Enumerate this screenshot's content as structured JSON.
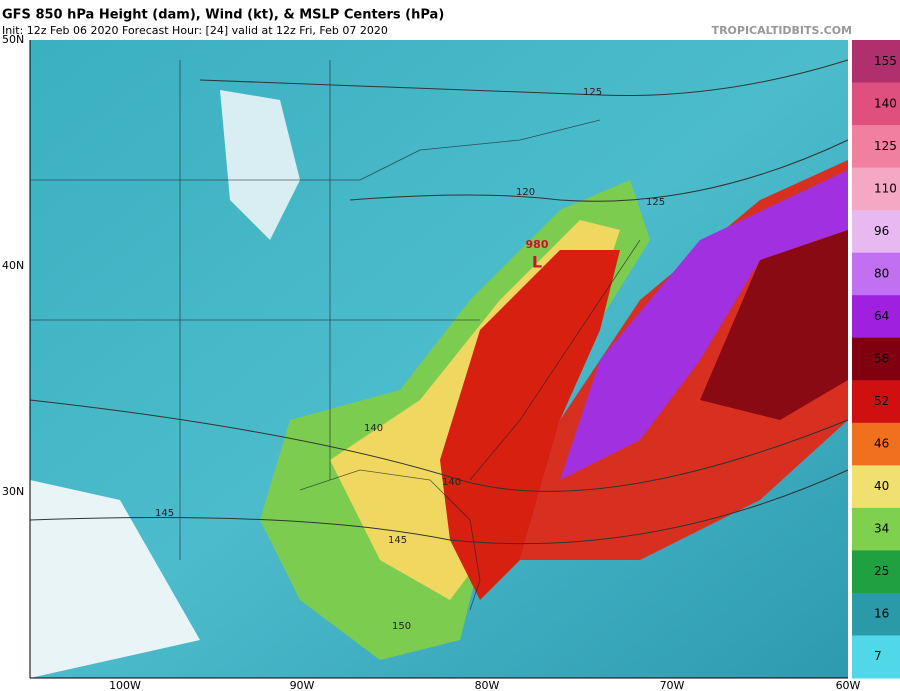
{
  "header": {
    "title": "GFS 850 hPa Height (dam), Wind (kt), & MSLP Centers (hPa)",
    "subtitle": "Init: 12z Feb 06 2020   Forecast Hour: [24]   valid at 12z Fri, Feb 07 2020",
    "watermark": "TROPICALTIDBITS.COM"
  },
  "map": {
    "lat_labels": [
      "50N",
      "40N",
      "30N"
    ],
    "lon_labels": [
      "100W",
      "90W",
      "80W",
      "70W",
      "60W"
    ],
    "contour_labels": [
      "125",
      "120",
      "125",
      "140",
      "140",
      "145",
      "145",
      "150"
    ],
    "low_center": {
      "pressure": "980",
      "symbol": "L"
    }
  },
  "colorbar": {
    "labels": [
      "155",
      "140",
      "125",
      "110",
      "96",
      "80",
      "64",
      "58",
      "52",
      "46",
      "40",
      "34",
      "25",
      "16",
      "7"
    ],
    "colors": [
      "#b0306e",
      "#e0507e",
      "#f07fa0",
      "#f4a8c4",
      "#e8b8f0",
      "#c070f0",
      "#a020e0",
      "#800010",
      "#d01010",
      "#f07020",
      "#f0e070",
      "#80d050",
      "#20a040",
      "#2a9aa8",
      "#50d8e8"
    ]
  }
}
